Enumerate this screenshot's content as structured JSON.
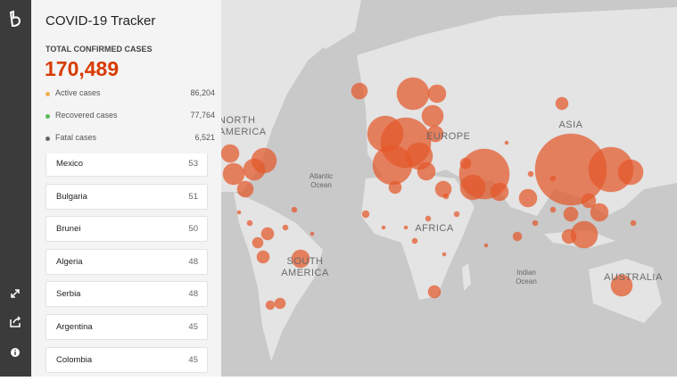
{
  "header": {
    "title": "COVID-19 Tracker"
  },
  "summary": {
    "label": "TOTAL CONFIRMED CASES",
    "total": "170,489",
    "rows": [
      {
        "label": "Active cases",
        "value": "86,204"
      },
      {
        "label": "Recovered cases",
        "value": "77,764"
      },
      {
        "label": "Fatal cases",
        "value": "6,521"
      }
    ]
  },
  "countries": [
    {
      "name": "Mexico",
      "value": "53"
    },
    {
      "name": "Bulgaria",
      "value": "51"
    },
    {
      "name": "Brunei",
      "value": "50"
    },
    {
      "name": "Algeria",
      "value": "48"
    },
    {
      "name": "Serbia",
      "value": "48"
    },
    {
      "name": "Argentina",
      "value": "45"
    },
    {
      "name": "Colombia",
      "value": "45"
    }
  ],
  "map_labels": [
    {
      "lines": [
        "NORTH",
        "AMERICA"
      ]
    },
    {
      "lines": [
        "Atlantic",
        "Ocean"
      ]
    },
    {
      "lines": [
        "EUROPE"
      ]
    },
    {
      "lines": [
        "ASIA"
      ]
    },
    {
      "lines": [
        "AFRICA"
      ]
    },
    {
      "lines": [
        "SOUTH",
        "AMERICA"
      ]
    },
    {
      "lines": [
        "Indian",
        "Ocean"
      ]
    },
    {
      "lines": [
        "AUSTRALIA"
      ]
    }
  ]
}
